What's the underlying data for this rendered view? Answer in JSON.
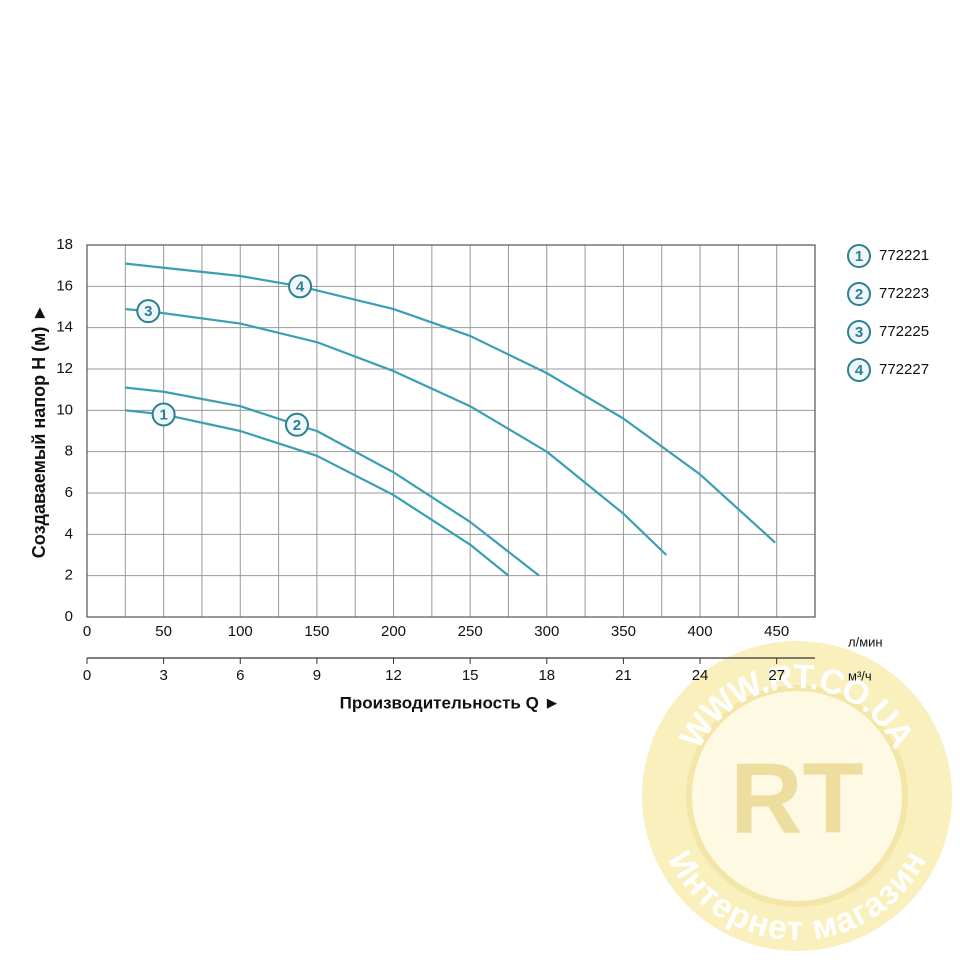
{
  "chart_data": {
    "type": "line",
    "x_title": "Производительность Q ►",
    "y_title": "Создаваемый напор H (м) ►",
    "x_unit": "л/мин",
    "x2_unit": "м³/ч",
    "xlim": [
      0,
      475
    ],
    "xticks": [
      0,
      50,
      100,
      150,
      200,
      250,
      300,
      350,
      400,
      450
    ],
    "xminor": [
      25,
      75,
      125,
      175,
      225,
      275,
      325,
      375,
      425,
      475
    ],
    "x2lim": [
      0,
      28.5
    ],
    "x2ticks": [
      0,
      3,
      6,
      9,
      12,
      15,
      18,
      21,
      24,
      27
    ],
    "ylim": [
      0,
      18
    ],
    "yticks": [
      0,
      2,
      4,
      6,
      8,
      10,
      12,
      14,
      16,
      18
    ],
    "grid": true,
    "series": [
      {
        "name": "772221",
        "label": "1",
        "color": "#3a9fb3",
        "x": [
          25,
          50,
          100,
          150,
          200,
          250,
          275
        ],
        "values": [
          10.0,
          9.8,
          9.0,
          7.8,
          5.9,
          3.5,
          2.0
        ]
      },
      {
        "name": "772223",
        "label": "2",
        "color": "#3a9fb3",
        "x": [
          25,
          50,
          100,
          137,
          150,
          200,
          250,
          295
        ],
        "values": [
          11.1,
          10.9,
          10.2,
          9.3,
          9.0,
          7.0,
          4.6,
          2.0
        ]
      },
      {
        "name": "772225",
        "label": "3",
        "color": "#3a9fb3",
        "x": [
          25,
          40,
          100,
          150,
          200,
          250,
          300,
          350,
          378
        ],
        "values": [
          14.9,
          14.8,
          14.2,
          13.3,
          11.9,
          10.2,
          8.0,
          5.0,
          3.0
        ]
      },
      {
        "name": "772227",
        "label": "4",
        "color": "#3a9fb3",
        "x": [
          25,
          50,
          100,
          139,
          200,
          250,
          300,
          350,
          400,
          449
        ],
        "values": [
          17.1,
          16.9,
          16.5,
          16.0,
          14.9,
          13.6,
          11.8,
          9.6,
          6.9,
          3.6
        ]
      }
    ]
  },
  "watermark": {
    "top": "WWW.RT.CO.UA",
    "logo": "RT",
    "bottom": "Интернет магазин"
  }
}
